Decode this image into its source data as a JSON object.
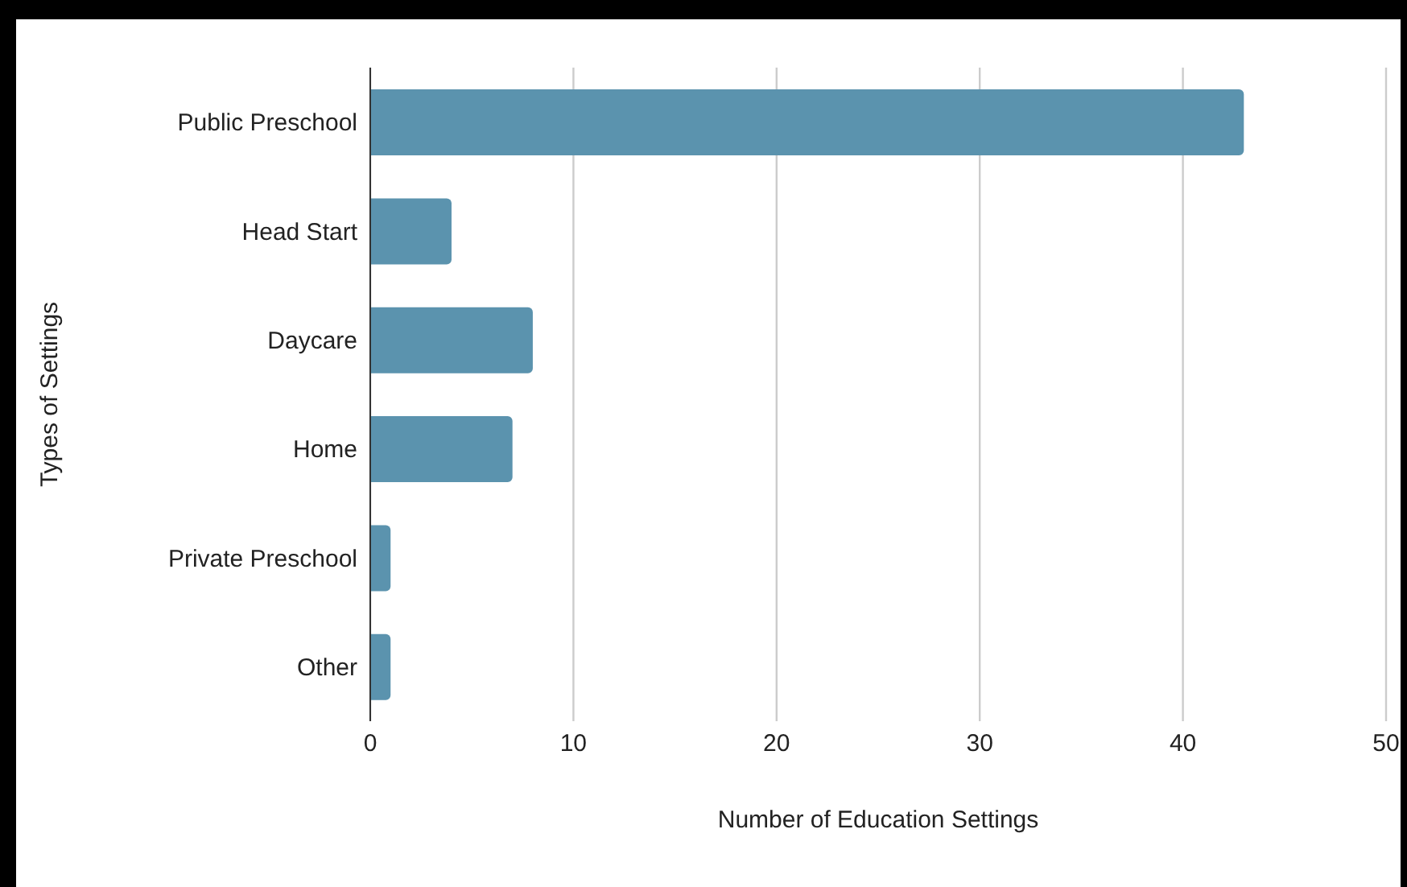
{
  "chart_data": {
    "type": "bar",
    "orientation": "horizontal",
    "xlabel": "Number of Education Settings",
    "ylabel": "Types of Settings",
    "categories": [
      "Public Preschool",
      "Head Start",
      "Daycare",
      "Home",
      "Private Preschool",
      "Other"
    ],
    "values": [
      43,
      4,
      8,
      7,
      1,
      1
    ],
    "color": "#5b93ae",
    "xlim": [
      0,
      50
    ],
    "xticks": [
      0,
      10,
      20,
      30,
      40,
      50
    ],
    "grid": "x"
  }
}
